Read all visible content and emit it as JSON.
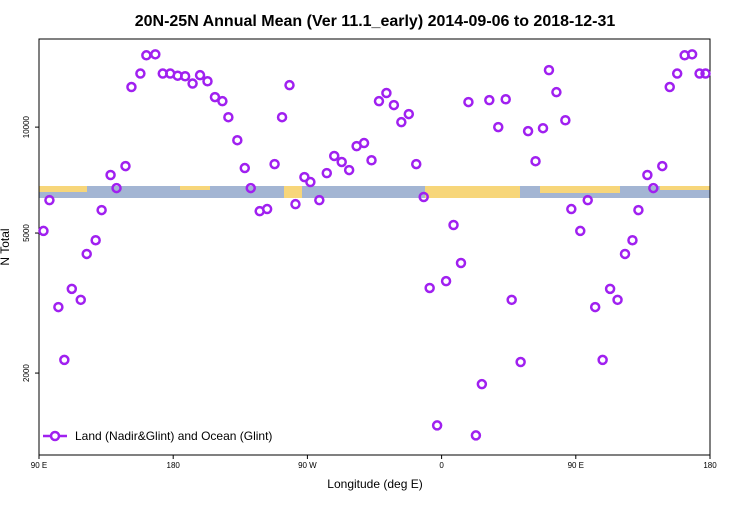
{
  "chart_data": {
    "type": "scatter",
    "title": "20N-25N Annual Mean (Ver 11.1_early)   2014-09-06 to 2018-12-31",
    "x_label": "Longitude (deg E)",
    "y_label": "N Total",
    "log_y": true,
    "legend": "bottom-left",
    "xlim": [
      90,
      540
    ],
    "xticks": [
      {
        "value": 90,
        "label": "90 E"
      },
      {
        "value": 180,
        "label": "180"
      },
      {
        "value": 270,
        "label": "90 W"
      },
      {
        "value": 360,
        "label": "0"
      },
      {
        "value": 450,
        "label": "90 E"
      },
      {
        "value": 540,
        "label": "180"
      }
    ],
    "ylim": [
      1170,
      17800
    ],
    "yticks": [
      2000,
      5000,
      10000
    ],
    "series": [
      {
        "name": "Land (Nadir&Glint) and Ocean (Glint)",
        "color": "#a020f0",
        "x": [
          93,
          97,
          103,
          107,
          112,
          118,
          122,
          128,
          132,
          138,
          142,
          148,
          152,
          158,
          162,
          168,
          173,
          178,
          183,
          188,
          193,
          198,
          203,
          208,
          213,
          217,
          223,
          228,
          232,
          238,
          243,
          248,
          253,
          258,
          262,
          268,
          272,
          278,
          283,
          288,
          293,
          298,
          303,
          308,
          313,
          318,
          323,
          328,
          333,
          338,
          343,
          348,
          352,
          357,
          363,
          368,
          373,
          378,
          383,
          387,
          392,
          398,
          403,
          407,
          413,
          418,
          423,
          428,
          432,
          437,
          443,
          447,
          453,
          458,
          463,
          468,
          473,
          478,
          483,
          488,
          492,
          498,
          502,
          508,
          513,
          518,
          523,
          528,
          533,
          537
        ],
        "values": [
          5070,
          6200,
          3080,
          2180,
          3470,
          3230,
          4360,
          4770,
          5810,
          7310,
          6710,
          7750,
          13000,
          14200,
          16000,
          16100,
          14200,
          14200,
          14000,
          13950,
          13300,
          14050,
          13500,
          12170,
          11850,
          10670,
          9180,
          7650,
          6710,
          5770,
          5850,
          7850,
          10670,
          13160,
          6040,
          7210,
          6980,
          6200,
          7400,
          8280,
          7960,
          7550,
          8830,
          9010,
          8050,
          11850,
          12500,
          11550,
          10330,
          10890,
          7850,
          6330,
          3490,
          1420,
          3650,
          5270,
          4110,
          11780,
          1330,
          1860,
          11930,
          10000,
          12000,
          3230,
          2150,
          9740,
          8000,
          9930,
          14520,
          12570,
          10460,
          5850,
          5070,
          6200,
          3080,
          2180,
          3470,
          3230,
          4360,
          4770,
          5810,
          7310,
          6710,
          7750,
          13000,
          14200,
          16000,
          16100,
          14200,
          14200
        ]
      }
    ]
  }
}
